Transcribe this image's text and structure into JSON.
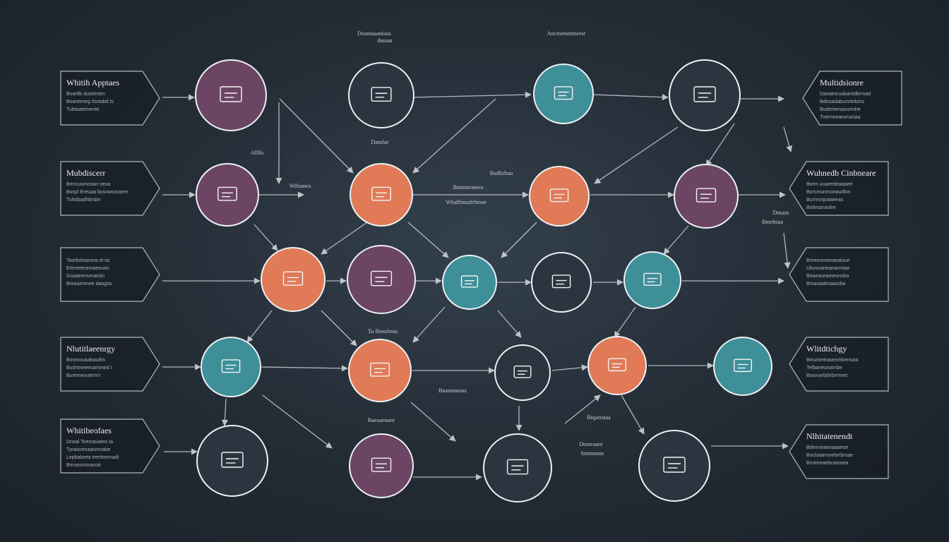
{
  "colors": {
    "background": "#232b34",
    "purple": "#6b4563",
    "orange": "#e07a57",
    "teal": "#3f8f99",
    "dark": "#2a3540",
    "ring": "#eef1f4",
    "edge": "#c9cfd6"
  },
  "nodes": [
    {
      "id": "n1",
      "color": "purple",
      "icon": "monitor-icon",
      "caption": ""
    },
    {
      "id": "n2",
      "color": "dark",
      "icon": "document-icon",
      "caption": ""
    },
    {
      "id": "n3",
      "color": "teal",
      "icon": "screen-icon",
      "caption": ""
    },
    {
      "id": "n4",
      "color": "dark",
      "icon": "chart-icon",
      "caption": ""
    },
    {
      "id": "n5",
      "color": "purple",
      "icon": "house-icon",
      "caption": ""
    },
    {
      "id": "n6",
      "color": "orange",
      "icon": "tag-icon",
      "caption": ""
    },
    {
      "id": "n7",
      "color": "orange",
      "icon": "box-icon",
      "caption": ""
    },
    {
      "id": "n8",
      "color": "purple",
      "icon": "card-icon",
      "caption": ""
    },
    {
      "id": "n9",
      "color": "orange",
      "icon": "chat-icon",
      "caption": ""
    },
    {
      "id": "n10",
      "color": "purple",
      "icon": "database-icon",
      "caption": ""
    },
    {
      "id": "n11",
      "color": "teal",
      "icon": "bird-icon",
      "caption": ""
    },
    {
      "id": "n12",
      "color": "dark",
      "icon": "diamond-icon",
      "caption": ""
    },
    {
      "id": "n13",
      "color": "teal",
      "icon": "globe-icon",
      "caption": ""
    },
    {
      "id": "n14",
      "color": "teal",
      "icon": "frame-icon",
      "caption": ""
    },
    {
      "id": "n15",
      "color": "orange",
      "icon": "diamond-icon",
      "caption": ""
    },
    {
      "id": "n16",
      "color": "dark",
      "icon": "panel-icon",
      "caption": ""
    },
    {
      "id": "n17",
      "color": "orange",
      "icon": "bars-icon",
      "caption": ""
    },
    {
      "id": "n18",
      "color": "teal",
      "icon": "book-icon",
      "caption": ""
    },
    {
      "id": "n19",
      "color": "dark",
      "icon": "home-icon",
      "caption": ""
    },
    {
      "id": "n20",
      "color": "purple",
      "icon": "calendar-icon",
      "caption": ""
    },
    {
      "id": "n21",
      "color": "dark",
      "icon": "tray-icon",
      "caption": ""
    },
    {
      "id": "n22",
      "color": "dark",
      "icon": "file-icon",
      "caption": ""
    }
  ],
  "callouts": [
    {
      "id": "c1",
      "side": "left",
      "title": "Whitih Apptaes",
      "lines": [
        "Boartlb dustresen",
        "Boamtmeg rbotabd ts",
        "Tubtaatemente"
      ]
    },
    {
      "id": "c2",
      "side": "left",
      "title": "Mubdiscerr",
      "lines": [
        "Bmrcuumosan seoa",
        "Busyt Ereuaa busnwcaraem",
        "Tufotbadhbrsbn"
      ]
    },
    {
      "id": "c3",
      "side": "left",
      "title": "",
      "lines": [
        "Taorbotsanma ot os",
        "Ertrreeeramaeouon",
        "Goaatrenumantin",
        "Breaaimmee daogos"
      ]
    },
    {
      "id": "c4",
      "side": "left",
      "title": "Nlutitlaeenrgy",
      "lines": [
        "Bmtmouaabauthn",
        "Budmneeesammed t",
        "Buremeuutenrn"
      ]
    },
    {
      "id": "c5",
      "side": "left",
      "title": "Whitibeofaes",
      "lines": [
        "Dnoal Toemavateo ta",
        "Tpraoceoaanmnabe",
        "Lepbaloeta trentmrmadt",
        "Bmuesmmanoit"
      ]
    },
    {
      "id": "c6",
      "side": "right",
      "title": "Multidsionre",
      "lines": [
        "Daoaesruabaredbrmad",
        "Bdeoadabumrtnbms",
        "Budemenaourmhe",
        "Tnermreanvrumaa"
      ]
    },
    {
      "id": "c7",
      "side": "right",
      "title": "Wuhnedb Cinbneare",
      "lines": [
        "Borm unaeedeaaaee",
        "Borsmunmonaudlon",
        "Burnrorpotaeeas",
        "Boltmanaotre"
      ]
    },
    {
      "id": "c8",
      "side": "right",
      "title": "",
      "lines": [
        "Breeeunntoaeatuue",
        "Ubosoaneanavmaa",
        "Beaeaseameonsba",
        "Bmaraatimaarsba"
      ]
    },
    {
      "id": "c9",
      "side": "right",
      "title": "Wlitdtichgy",
      "lines": [
        "Bmurtretoaammbenuoa",
        "Tefbaneunarnbe",
        "Boanuebdnbmmes"
      ]
    },
    {
      "id": "c10",
      "side": "right",
      "title": "Nlhitatenendt",
      "lines": [
        "Bdenneaeoaaaeoe",
        "Bocbaamorebrrbrnae",
        "Brneneaebcatonea"
      ]
    }
  ],
  "labels": [
    "Doamuaaniiais",
    "dassan",
    "Ancmemmmeesr",
    "Damfae",
    "Alllfs",
    "Wibianea",
    "Bsdfisbuo",
    "Bummeanera",
    "Whaffinnafrfimae",
    "Tu Ibossbnas",
    "Dmaos",
    "Bmehsua",
    "Buanmamas",
    "Biqaeoaaa",
    "Dorseaaee",
    "Smmmme",
    "Baeoaenaee"
  ]
}
